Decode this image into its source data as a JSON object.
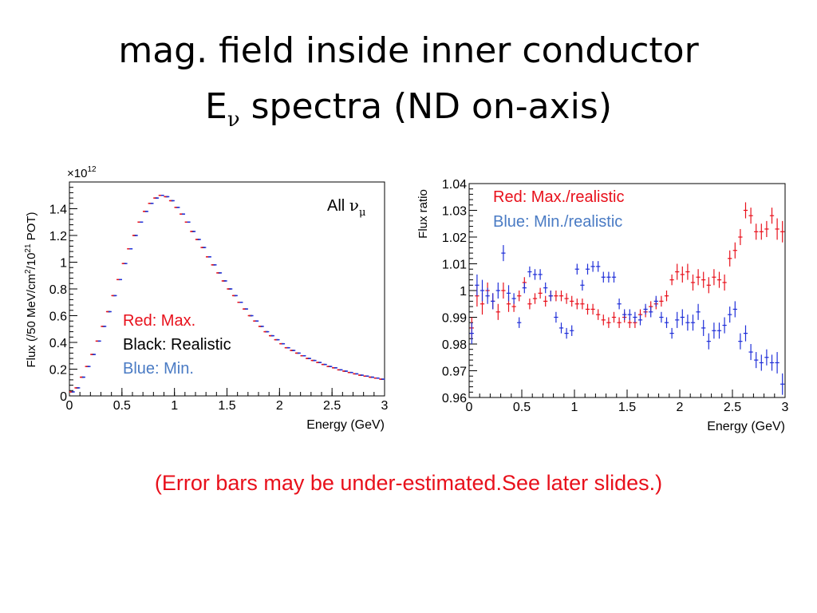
{
  "slide": {
    "title_line1": "mag. field inside inner conductor",
    "title_line2_main": "E",
    "title_line2_sub": "ν",
    "title_line2_rest": " spectra (ND on-axis)",
    "footnote": "(Error bars may be under-estimated.See later slides.)"
  },
  "colors": {
    "red": "#e8101b",
    "black": "#000000",
    "blue": "#1f2fd8",
    "legend_blue": "#4a7bc4"
  },
  "chart_data": [
    {
      "type": "scatter",
      "subtype": "histogram-errorbars",
      "xlabel": "Energy (GeV)",
      "ylabel": "Flux (/50 MeV/cm²/10²¹ POT)",
      "ylabel_parts": {
        "a": "Flux (/50 MeV/cm",
        "b": "2",
        "c": "/10",
        "d": "21",
        "e": " POT)"
      },
      "y_multiplier_base": "×10",
      "y_multiplier_exp": "12",
      "xlim": [
        0,
        3
      ],
      "ylim": [
        0,
        1.6
      ],
      "xticks": [
        "0",
        "0.5",
        "1",
        "1.5",
        "2",
        "2.5",
        "3"
      ],
      "yticks": [
        "0",
        "0.2",
        "0.4",
        "0.6",
        "0.8",
        "1",
        "1.2",
        "1.4"
      ],
      "annotation_main": "All ",
      "annotation_greek": "ν",
      "annotation_sub": "μ",
      "legend": [
        "Red: Max.",
        "Black: Realistic",
        "Blue: Min."
      ],
      "x": [
        0.025,
        0.075,
        0.125,
        0.175,
        0.225,
        0.275,
        0.325,
        0.375,
        0.425,
        0.475,
        0.525,
        0.575,
        0.625,
        0.675,
        0.725,
        0.775,
        0.825,
        0.875,
        0.925,
        0.975,
        1.025,
        1.075,
        1.125,
        1.175,
        1.225,
        1.275,
        1.325,
        1.375,
        1.425,
        1.475,
        1.525,
        1.575,
        1.625,
        1.675,
        1.725,
        1.775,
        1.825,
        1.875,
        1.925,
        1.975,
        2.025,
        2.075,
        2.125,
        2.175,
        2.225,
        2.275,
        2.325,
        2.375,
        2.425,
        2.475,
        2.525,
        2.575,
        2.625,
        2.675,
        2.725,
        2.775,
        2.825,
        2.875,
        2.925,
        2.975
      ],
      "series": [
        {
          "name": "Black: Realistic",
          "values": [
            0.03,
            0.06,
            0.14,
            0.22,
            0.31,
            0.41,
            0.52,
            0.63,
            0.75,
            0.87,
            0.99,
            1.1,
            1.2,
            1.3,
            1.38,
            1.44,
            1.48,
            1.5,
            1.49,
            1.46,
            1.41,
            1.36,
            1.3,
            1.23,
            1.17,
            1.11,
            1.04,
            0.98,
            0.92,
            0.86,
            0.8,
            0.75,
            0.7,
            0.65,
            0.6,
            0.56,
            0.52,
            0.48,
            0.45,
            0.42,
            0.39,
            0.36,
            0.34,
            0.32,
            0.3,
            0.28,
            0.265,
            0.25,
            0.235,
            0.22,
            0.21,
            0.195,
            0.185,
            0.175,
            0.165,
            0.155,
            0.148,
            0.14,
            0.133,
            0.125
          ]
        },
        {
          "name": "Red: Max.",
          "values": [
            0.03,
            0.06,
            0.14,
            0.22,
            0.31,
            0.41,
            0.52,
            0.63,
            0.75,
            0.87,
            0.99,
            1.1,
            1.2,
            1.3,
            1.38,
            1.44,
            1.48,
            1.5,
            1.49,
            1.46,
            1.41,
            1.36,
            1.3,
            1.23,
            1.17,
            1.11,
            1.04,
            0.98,
            0.92,
            0.86,
            0.8,
            0.75,
            0.7,
            0.65,
            0.6,
            0.56,
            0.52,
            0.48,
            0.45,
            0.42,
            0.39,
            0.36,
            0.34,
            0.32,
            0.3,
            0.28,
            0.265,
            0.25,
            0.235,
            0.22,
            0.21,
            0.195,
            0.185,
            0.175,
            0.165,
            0.155,
            0.148,
            0.14,
            0.133,
            0.125
          ]
        },
        {
          "name": "Blue: Min.",
          "values": [
            0.03,
            0.06,
            0.14,
            0.22,
            0.31,
            0.41,
            0.52,
            0.63,
            0.75,
            0.87,
            0.99,
            1.1,
            1.2,
            1.3,
            1.38,
            1.44,
            1.48,
            1.5,
            1.49,
            1.46,
            1.41,
            1.36,
            1.3,
            1.23,
            1.17,
            1.11,
            1.04,
            0.98,
            0.92,
            0.86,
            0.8,
            0.75,
            0.7,
            0.65,
            0.6,
            0.56,
            0.52,
            0.48,
            0.45,
            0.42,
            0.39,
            0.36,
            0.34,
            0.32,
            0.3,
            0.28,
            0.265,
            0.25,
            0.235,
            0.22,
            0.21,
            0.195,
            0.185,
            0.175,
            0.165,
            0.155,
            0.148,
            0.14,
            0.133,
            0.125
          ]
        }
      ]
    },
    {
      "type": "scatter",
      "subtype": "errorbars",
      "xlabel": "Energy (GeV)",
      "ylabel": "Flux ratio",
      "xlim": [
        0,
        3
      ],
      "ylim": [
        0.96,
        1.04
      ],
      "xticks": [
        "0",
        "0.5",
        "1",
        "1.5",
        "2",
        "2.5",
        "3"
      ],
      "yticks": [
        "0.96",
        "0.97",
        "0.98",
        "0.99",
        "1",
        "1.01",
        "1.02",
        "1.03",
        "1.04"
      ],
      "legend": [
        "Red: Max./realistic",
        "Blue: Min./realistic"
      ],
      "x": [
        0.025,
        0.075,
        0.125,
        0.175,
        0.225,
        0.275,
        0.325,
        0.375,
        0.425,
        0.475,
        0.525,
        0.575,
        0.625,
        0.675,
        0.725,
        0.775,
        0.825,
        0.875,
        0.925,
        0.975,
        1.025,
        1.075,
        1.125,
        1.175,
        1.225,
        1.275,
        1.325,
        1.375,
        1.425,
        1.475,
        1.525,
        1.575,
        1.625,
        1.675,
        1.725,
        1.775,
        1.825,
        1.875,
        1.925,
        1.975,
        2.025,
        2.075,
        2.125,
        2.175,
        2.225,
        2.275,
        2.325,
        2.375,
        2.425,
        2.475,
        2.525,
        2.575,
        2.625,
        2.675,
        2.725,
        2.775,
        2.825,
        2.875,
        2.925,
        2.975
      ],
      "series": [
        {
          "name": "Red: Max./realistic",
          "values": [
            0.986,
            0.998,
            0.995,
            1.0,
            0.996,
            0.992,
            1.0,
            0.995,
            0.994,
            0.998,
            1.003,
            0.995,
            0.997,
            0.999,
            0.996,
            0.998,
            0.998,
            0.998,
            0.997,
            0.996,
            0.995,
            0.995,
            0.993,
            0.993,
            0.991,
            0.989,
            0.988,
            0.99,
            0.988,
            0.99,
            0.988,
            0.988,
            0.991,
            0.992,
            0.994,
            0.995,
            0.996,
            0.998,
            1.004,
            1.007,
            1.006,
            1.007,
            1.003,
            1.005,
            1.004,
            1.002,
            1.005,
            1.004,
            1.003,
            1.012,
            1.015,
            1.02,
            1.03,
            1.028,
            1.022,
            1.022,
            1.023,
            1.028,
            1.023,
            1.022
          ],
          "errors": [
            0.004,
            0.004,
            0.004,
            0.003,
            0.003,
            0.003,
            0.003,
            0.003,
            0.002,
            0.002,
            0.002,
            0.002,
            0.002,
            0.002,
            0.002,
            0.002,
            0.002,
            0.002,
            0.002,
            0.002,
            0.002,
            0.002,
            0.002,
            0.002,
            0.002,
            0.002,
            0.002,
            0.002,
            0.002,
            0.002,
            0.002,
            0.002,
            0.002,
            0.002,
            0.002,
            0.002,
            0.002,
            0.002,
            0.002,
            0.003,
            0.003,
            0.003,
            0.003,
            0.003,
            0.003,
            0.003,
            0.003,
            0.003,
            0.003,
            0.003,
            0.003,
            0.003,
            0.003,
            0.003,
            0.003,
            0.003,
            0.003,
            0.003,
            0.004,
            0.004
          ]
        },
        {
          "name": "Blue: Min./realistic",
          "values": [
            0.984,
            1.002,
            1.0,
            0.998,
            0.996,
            1.0,
            1.014,
            0.999,
            0.997,
            0.988,
            1.001,
            1.007,
            1.006,
            1.006,
            1.001,
            0.998,
            0.99,
            0.986,
            0.984,
            0.985,
            1.008,
            1.002,
            1.008,
            1.009,
            1.009,
            1.005,
            1.005,
            1.005,
            0.995,
            0.991,
            0.991,
            0.99,
            0.989,
            0.993,
            0.992,
            0.996,
            0.99,
            0.988,
            0.984,
            0.989,
            0.99,
            0.988,
            0.988,
            0.992,
            0.986,
            0.981,
            0.985,
            0.985,
            0.987,
            0.991,
            0.993,
            0.981,
            0.984,
            0.977,
            0.974,
            0.973,
            0.975,
            0.973,
            0.973,
            0.965
          ],
          "errors": [
            0.004,
            0.004,
            0.004,
            0.003,
            0.003,
            0.003,
            0.003,
            0.003,
            0.002,
            0.002,
            0.002,
            0.002,
            0.002,
            0.002,
            0.002,
            0.002,
            0.002,
            0.002,
            0.002,
            0.002,
            0.002,
            0.002,
            0.002,
            0.002,
            0.002,
            0.002,
            0.002,
            0.002,
            0.002,
            0.002,
            0.002,
            0.002,
            0.002,
            0.002,
            0.002,
            0.002,
            0.002,
            0.002,
            0.002,
            0.003,
            0.003,
            0.003,
            0.003,
            0.003,
            0.003,
            0.003,
            0.003,
            0.003,
            0.003,
            0.003,
            0.003,
            0.003,
            0.003,
            0.003,
            0.003,
            0.003,
            0.003,
            0.003,
            0.004,
            0.004
          ]
        }
      ]
    }
  ]
}
